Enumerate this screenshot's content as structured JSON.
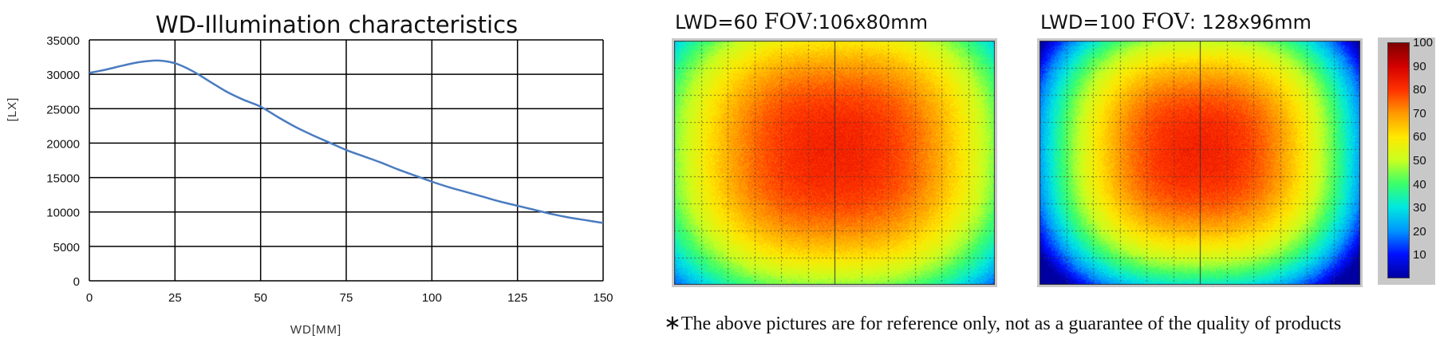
{
  "chart_data": [
    {
      "type": "line",
      "title": "WD-Illumination characteristics",
      "xlabel": "WD[MM]",
      "ylabel": "[LX]",
      "xlim": [
        0,
        150
      ],
      "ylim": [
        0,
        35000
      ],
      "x_ticks": [
        "0",
        "25",
        "50",
        "75",
        "100",
        "125",
        "150"
      ],
      "y_ticks": [
        "0",
        "5000",
        "10000",
        "15000",
        "20000",
        "25000",
        "30000",
        "35000"
      ],
      "grid": true,
      "series": [
        {
          "x": [
            0,
            5,
            10,
            15,
            20,
            25,
            30,
            35,
            40,
            45,
            50,
            55,
            60,
            65,
            70,
            75,
            80,
            85,
            90,
            95,
            100,
            105,
            110,
            115,
            120,
            125,
            130,
            135,
            140,
            145,
            150
          ],
          "values": [
            30200,
            30700,
            31300,
            31800,
            32000,
            31600,
            30500,
            29000,
            27500,
            26300,
            25300,
            23800,
            22400,
            21200,
            20100,
            19000,
            18100,
            17200,
            16200,
            15300,
            14400,
            13600,
            12900,
            12200,
            11500,
            10900,
            10300,
            9700,
            9200,
            8800,
            8400
          ],
          "color": "#4a7cc0"
        }
      ]
    },
    {
      "type": "heatmap",
      "title_prefix": "LWD=60",
      "fov_label": "FOV",
      "fov_value": ":106x80mm",
      "peak_center": [
        0.5,
        0.45
      ],
      "spread": [
        0.52,
        0.58
      ]
    },
    {
      "type": "heatmap",
      "title_prefix": "LWD=100",
      "fov_label": "FOV",
      "fov_value": ": 128x96mm",
      "peak_center": [
        0.5,
        0.45
      ],
      "spread": [
        0.42,
        0.5
      ]
    },
    {
      "type": "colorbar",
      "range": [
        0,
        100
      ],
      "tick_labels": [
        "100",
        "90",
        "80",
        "70",
        "60",
        "50",
        "40",
        "30",
        "20",
        "10"
      ]
    }
  ],
  "disclaimer": {
    "star": "∗",
    "text": "The above pictures are for reference only, not as a guarantee of the quality of products"
  }
}
